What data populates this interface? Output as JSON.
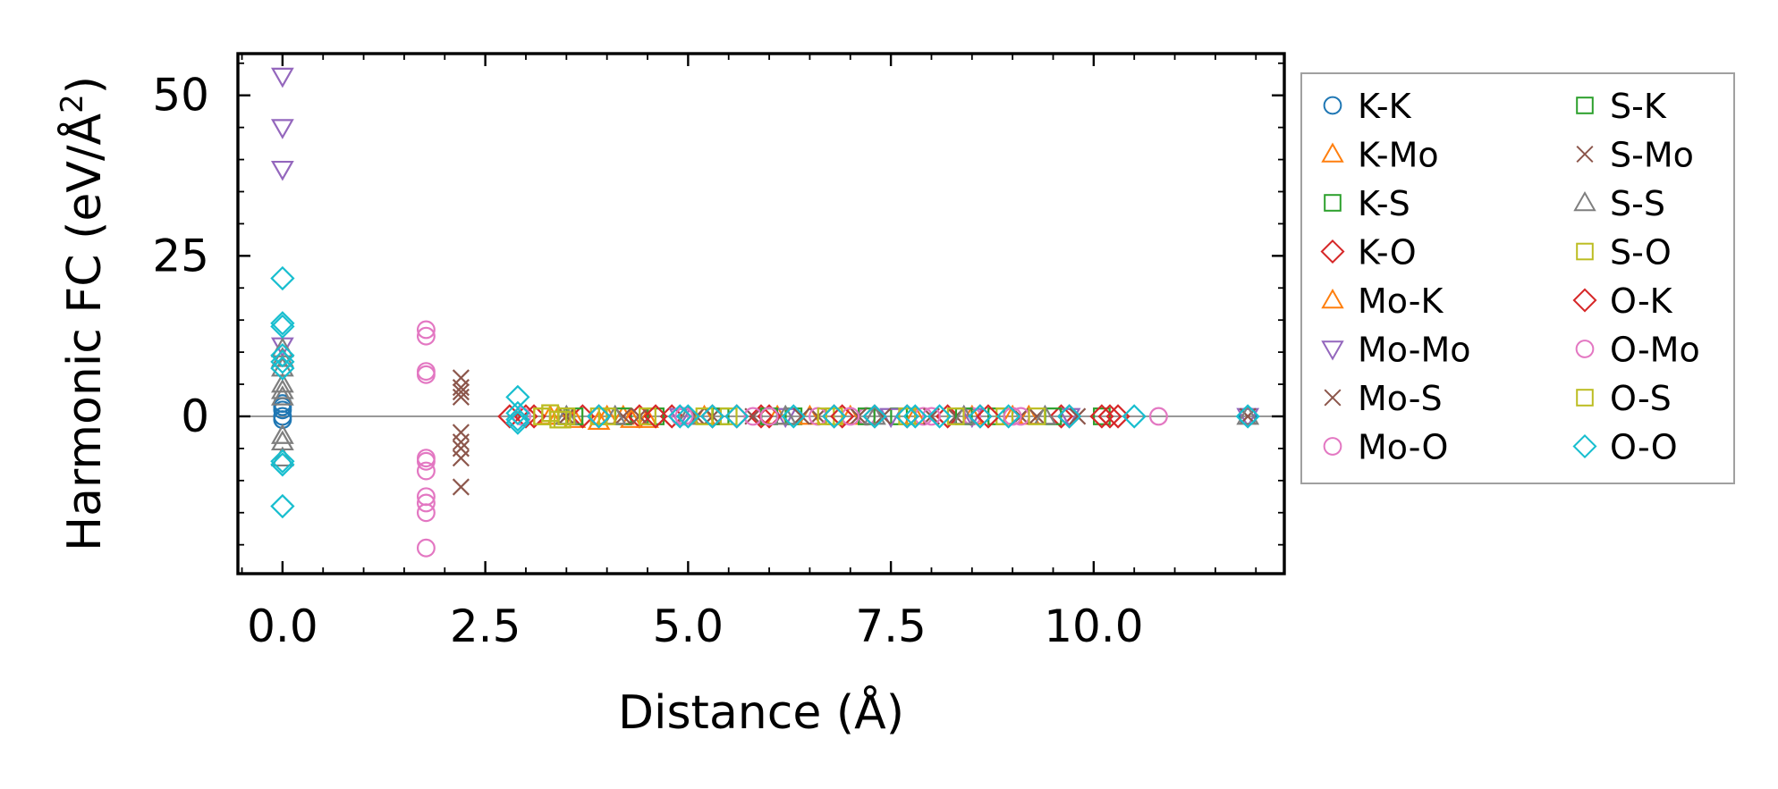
{
  "chart_data": {
    "type": "scatter",
    "title": "",
    "xlabel": "Distance (Å)",
    "ylabel": "Harmonic FC (eV/Å²)",
    "ylabel_base": "Harmonic FC (eV/Å",
    "ylabel_sup": "2",
    "ylabel_close": ")",
    "xlim": [
      -0.55,
      12.35
    ],
    "ylim": [
      -24.5,
      56.5
    ],
    "xticks": [
      0.0,
      2.5,
      5.0,
      7.5,
      10.0
    ],
    "xtick_labels": [
      "0.0",
      "2.5",
      "5.0",
      "7.5",
      "10.0"
    ],
    "yticks": [
      0,
      25,
      50
    ],
    "ytick_labels": [
      "0",
      "25",
      "50"
    ],
    "zero_line": true,
    "legend_position": "right-outside",
    "series": [
      {
        "name": "K-K",
        "marker": "circle",
        "color": "#1f77b4",
        "x": [
          0,
          0,
          0,
          0,
          0,
          11.9
        ],
        "y": [
          2,
          1,
          0,
          -0.5,
          1.5,
          0
        ]
      },
      {
        "name": "K-Mo",
        "marker": "triangle-up",
        "color": "#ff7f0e",
        "x": [
          3.3,
          3.6,
          3.9,
          4.2,
          4.5,
          5.0,
          6.1,
          7.0,
          8.5,
          9.2
        ],
        "y": [
          0,
          -0.5,
          -0.8,
          0,
          -0.5,
          0,
          0,
          0,
          0,
          0
        ]
      },
      {
        "name": "K-S",
        "marker": "square",
        "color": "#2ca02c",
        "x": [
          3.5,
          4.2,
          5.4,
          6.3,
          7.6,
          8.8,
          10.1
        ],
        "y": [
          0,
          0,
          0,
          0,
          0,
          0,
          0
        ]
      },
      {
        "name": "K-O",
        "marker": "diamond",
        "color": "#d62728",
        "x": [
          2.8,
          3.1,
          3.7,
          4.4,
          4.8,
          5.6,
          5.9,
          6.8,
          7.3,
          8.2,
          8.6,
          9.6,
          10.1,
          10.3
        ],
        "y": [
          0,
          0,
          0,
          0,
          0,
          0,
          0,
          0,
          0,
          0,
          0,
          0,
          0,
          0
        ]
      },
      {
        "name": "Mo-K",
        "marker": "triangle-up",
        "color": "#ff7f0e",
        "x": [
          3.4,
          4.0,
          4.3,
          5.2,
          6.5,
          7.8,
          9.0
        ],
        "y": [
          0,
          0,
          -0.5,
          0,
          0,
          0,
          0
        ]
      },
      {
        "name": "Mo-Mo",
        "marker": "triangle-down",
        "color": "#9467bd",
        "x": [
          0,
          0,
          0,
          0,
          4.9,
          6.2,
          7.5,
          8.5,
          9.7,
          11.9
        ],
        "y": [
          53,
          45,
          38.5,
          11,
          0,
          0,
          0,
          0,
          0,
          0
        ]
      },
      {
        "name": "Mo-S",
        "marker": "x",
        "color": "#8c564b",
        "x": [
          2.2,
          2.2,
          2.2,
          2.2,
          2.2,
          2.2,
          2.2,
          2.2,
          2.2,
          3.5,
          4.2,
          5.1,
          5.8,
          6.6,
          7.4,
          8.3,
          9.1,
          9.8,
          11.9
        ],
        "y": [
          6,
          4.5,
          3.8,
          3,
          -2.5,
          -4,
          -5,
          -6.5,
          -11,
          0,
          0,
          0,
          0,
          0,
          0,
          0,
          0,
          0,
          0
        ]
      },
      {
        "name": "Mo-O",
        "marker": "circle",
        "color": "#e377c2",
        "x": [
          1.77,
          1.77,
          1.77,
          1.77,
          1.77,
          1.77,
          1.77,
          1.77,
          1.77,
          1.77,
          1.77,
          4.9,
          5.8,
          6.6,
          7.2,
          7.9,
          8.5,
          9.1,
          10.8
        ],
        "y": [
          13.5,
          12.5,
          7,
          6.5,
          -6.5,
          -7,
          -8.5,
          -12.5,
          -13.5,
          -15,
          -20.5,
          0,
          0,
          0,
          0,
          0,
          0,
          0,
          0
        ]
      },
      {
        "name": "S-K",
        "marker": "square",
        "color": "#2ca02c",
        "x": [
          3.6,
          4.6,
          6.0,
          7.2,
          8.4,
          9.5
        ],
        "y": [
          0,
          0,
          0,
          0,
          0,
          0
        ]
      },
      {
        "name": "S-Mo",
        "marker": "x",
        "color": "#8c564b",
        "x": [
          3.5,
          4.4,
          5.3,
          6.4,
          7.1,
          8.0,
          9.3
        ],
        "y": [
          0,
          0,
          0,
          0,
          0,
          0,
          0
        ]
      },
      {
        "name": "S-S",
        "marker": "triangle-up",
        "color": "#7f7f7f",
        "x": [
          0,
          0,
          0,
          0,
          0,
          0,
          0,
          0,
          0,
          3.5,
          4.1,
          5.0,
          6.2,
          7.3,
          8.4,
          9.4,
          11.9
        ],
        "y": [
          10.5,
          9,
          7.5,
          5,
          4,
          3,
          -3,
          -4,
          -6.5,
          0,
          0,
          0,
          0,
          0,
          0,
          0,
          0
        ]
      },
      {
        "name": "S-O",
        "marker": "square",
        "color": "#bcbd22",
        "x": [
          3.2,
          3.3,
          3.4,
          3.5,
          3.9,
          4.5,
          5.5,
          6.7,
          7.7,
          8.9,
          9.3
        ],
        "y": [
          0,
          0.5,
          -0.5,
          0,
          0,
          0,
          0,
          0,
          0,
          0,
          0
        ]
      },
      {
        "name": "O-K",
        "marker": "diamond",
        "color": "#d62728",
        "x": [
          3.0,
          3.9,
          4.6,
          5.3,
          6.0,
          6.9,
          7.7,
          8.7,
          9.7,
          10.2
        ],
        "y": [
          0,
          0,
          0,
          0,
          0,
          0,
          0,
          0,
          0,
          0
        ]
      },
      {
        "name": "O-Mo",
        "marker": "circle",
        "color": "#e377c2",
        "x": [
          2.95,
          4.95,
          6.0,
          7.0,
          8.0,
          9.0
        ],
        "y": [
          0,
          0,
          0,
          0,
          0,
          0
        ]
      },
      {
        "name": "O-S",
        "marker": "square",
        "color": "#bcbd22",
        "x": [
          3.2,
          3.3,
          3.45,
          4.0,
          5.2,
          6.8,
          8.3
        ],
        "y": [
          0,
          0.5,
          -0.5,
          0,
          0,
          0,
          0
        ]
      },
      {
        "name": "O-O",
        "marker": "diamond",
        "color": "#17becf",
        "x": [
          0,
          0,
          0,
          0,
          0,
          0,
          0,
          0,
          0,
          2.9,
          2.9,
          2.9,
          2.9,
          3.9,
          4.9,
          5.0,
          5.3,
          5.6,
          6.3,
          6.8,
          7.3,
          7.7,
          7.8,
          8.1,
          8.6,
          8.95,
          9.7,
          10.5,
          11.9
        ],
        "y": [
          21.5,
          14.5,
          14,
          9.5,
          8.5,
          7.5,
          -7,
          -7.5,
          -14,
          3,
          0.5,
          -0.5,
          -1,
          0,
          0,
          0,
          0,
          0,
          0,
          0,
          0,
          0,
          0,
          0,
          0,
          0,
          0,
          0,
          0
        ]
      }
    ]
  }
}
